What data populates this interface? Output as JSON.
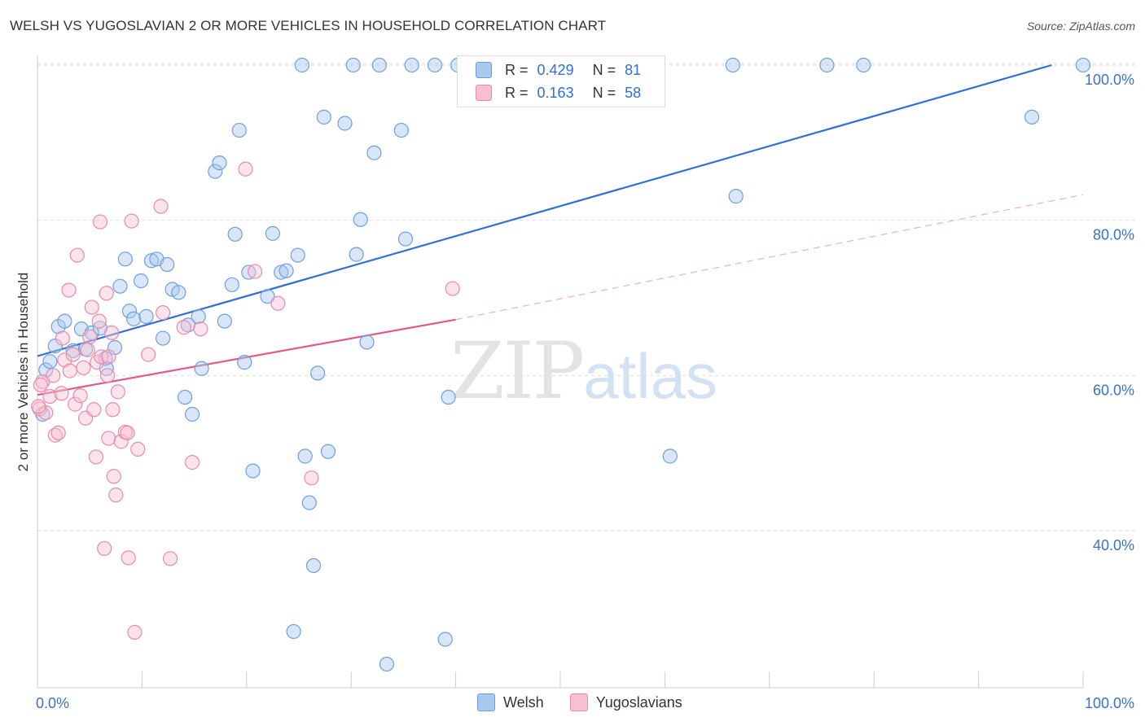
{
  "header": {
    "title": "WELSH VS YUGOSLAVIAN 2 OR MORE VEHICLES IN HOUSEHOLD CORRELATION CHART",
    "source": "Source: ZipAtlas.com"
  },
  "watermark": {
    "zip": "ZIP",
    "atlas": "atlas"
  },
  "stats": [
    {
      "r_label": "R =",
      "r_value": "0.429",
      "n_label": "N =",
      "n_value": "81",
      "color": "#a9c8f0",
      "border": "#6d9fe0"
    },
    {
      "r_label": "R =",
      "r_value": "0.163",
      "n_label": "N =",
      "n_value": "58",
      "color": "#f7c0d2",
      "border": "#e98aaa"
    }
  ],
  "legend": [
    {
      "label": "Welsh",
      "color": "#a9c8f0",
      "border": "#6d9fe0"
    },
    {
      "label": "Yugoslavians",
      "color": "#f7c0d2",
      "border": "#e98aaa"
    }
  ],
  "chart_data": {
    "type": "scatter",
    "title": "WELSH VS YUGOSLAVIAN 2 OR MORE VEHICLES IN HOUSEHOLD CORRELATION CHART",
    "xlabel": "",
    "ylabel": "2 or more Vehicles in Household",
    "xlim": [
      0,
      100
    ],
    "ylim": [
      20,
      102
    ],
    "x_tick_labels": [
      "0.0%",
      "100.0%"
    ],
    "y_ticks": [
      100,
      80,
      60,
      40
    ],
    "y_tick_labels": [
      "100.0%",
      "80.0%",
      "60.0%",
      "40.0%"
    ],
    "grid": true,
    "legend_position": "bottom-center",
    "series": [
      {
        "name": "Welsh",
        "color": "#a9c8f0",
        "stroke": "#6d9fe0",
        "line_color": "#2f6fd6",
        "trend": {
          "x": [
            0,
            97
          ],
          "y": [
            62.5,
            100
          ]
        },
        "points": [
          [
            0.5,
            55.0
          ],
          [
            0.8,
            60.7
          ],
          [
            1.2,
            61.8
          ],
          [
            1.7,
            63.8
          ],
          [
            2.0,
            66.3
          ],
          [
            2.6,
            67.0
          ],
          [
            3.4,
            63.2
          ],
          [
            4.2,
            66.0
          ],
          [
            4.6,
            63.4
          ],
          [
            5.2,
            65.5
          ],
          [
            6.0,
            66.1
          ],
          [
            6.5,
            62.2
          ],
          [
            6.6,
            60.9
          ],
          [
            7.4,
            63.6
          ],
          [
            7.9,
            71.5
          ],
          [
            8.4,
            75.0
          ],
          [
            8.8,
            68.3
          ],
          [
            9.2,
            67.3
          ],
          [
            9.9,
            72.2
          ],
          [
            10.4,
            67.6
          ],
          [
            10.9,
            74.8
          ],
          [
            11.4,
            75.0
          ],
          [
            12.0,
            64.8
          ],
          [
            12.4,
            74.3
          ],
          [
            12.9,
            71.1
          ],
          [
            13.5,
            70.7
          ],
          [
            14.1,
            57.2
          ],
          [
            14.4,
            66.5
          ],
          [
            14.8,
            55.0
          ],
          [
            15.4,
            67.6
          ],
          [
            15.7,
            60.9
          ],
          [
            17.0,
            86.3
          ],
          [
            17.4,
            87.4
          ],
          [
            17.9,
            67.0
          ],
          [
            18.6,
            71.7
          ],
          [
            18.9,
            78.2
          ],
          [
            19.3,
            91.6
          ],
          [
            19.8,
            61.7
          ],
          [
            20.2,
            73.3
          ],
          [
            20.6,
            47.7
          ],
          [
            22.0,
            70.2
          ],
          [
            22.5,
            78.3
          ],
          [
            23.3,
            73.3
          ],
          [
            23.8,
            73.5
          ],
          [
            24.5,
            27.0
          ],
          [
            24.9,
            75.5
          ],
          [
            25.3,
            100
          ],
          [
            25.6,
            49.6
          ],
          [
            26.0,
            43.6
          ],
          [
            26.4,
            35.5
          ],
          [
            26.8,
            60.3
          ],
          [
            27.4,
            93.3
          ],
          [
            27.8,
            50.2
          ],
          [
            29.4,
            92.5
          ],
          [
            30.2,
            100
          ],
          [
            30.5,
            75.6
          ],
          [
            30.9,
            80.1
          ],
          [
            31.5,
            64.3
          ],
          [
            32.2,
            88.7
          ],
          [
            32.7,
            100
          ],
          [
            33.4,
            22.8
          ],
          [
            34.8,
            91.6
          ],
          [
            35.2,
            77.6
          ],
          [
            35.8,
            100
          ],
          [
            38.0,
            100
          ],
          [
            39.0,
            26.0
          ],
          [
            39.3,
            57.2
          ],
          [
            40.2,
            100
          ],
          [
            41.5,
            100
          ],
          [
            42.0,
            100
          ],
          [
            44.2,
            100
          ],
          [
            46.0,
            100
          ],
          [
            47.2,
            100
          ],
          [
            50.0,
            100
          ],
          [
            60.5,
            49.6
          ],
          [
            66.5,
            100
          ],
          [
            66.8,
            83.1
          ],
          [
            75.5,
            100
          ],
          [
            79.0,
            100
          ],
          [
            95.1,
            93.3
          ],
          [
            100.0,
            100
          ]
        ]
      },
      {
        "name": "Yugoslavians",
        "color": "#f7c0d2",
        "stroke": "#e98aaa",
        "line_color": "#e05a8a",
        "trend": {
          "x": [
            0,
            40
          ],
          "y": [
            57.5,
            67.2
          ]
        },
        "trend_dashed": {
          "x": [
            40,
            100
          ],
          "y": [
            67.2,
            83.3
          ]
        },
        "points": [
          [
            0.2,
            55.7
          ],
          [
            0.5,
            59.2
          ],
          [
            0.8,
            55.2
          ],
          [
            1.2,
            57.3
          ],
          [
            1.5,
            60.0
          ],
          [
            1.7,
            52.3
          ],
          [
            2.0,
            52.6
          ],
          [
            2.3,
            57.7
          ],
          [
            2.4,
            64.8
          ],
          [
            2.6,
            62.0
          ],
          [
            3.0,
            71.0
          ],
          [
            3.1,
            60.6
          ],
          [
            3.4,
            62.7
          ],
          [
            3.6,
            56.3
          ],
          [
            3.8,
            75.5
          ],
          [
            4.1,
            57.4
          ],
          [
            4.4,
            61.0
          ],
          [
            4.6,
            54.5
          ],
          [
            4.8,
            63.3
          ],
          [
            5.0,
            65.0
          ],
          [
            5.2,
            68.8
          ],
          [
            5.4,
            55.6
          ],
          [
            5.6,
            49.5
          ],
          [
            5.7,
            61.7
          ],
          [
            5.9,
            67.0
          ],
          [
            6.0,
            79.8
          ],
          [
            6.1,
            62.4
          ],
          [
            6.4,
            37.7
          ],
          [
            6.6,
            70.6
          ],
          [
            6.7,
            60.0
          ],
          [
            6.8,
            62.4
          ],
          [
            6.8,
            51.9
          ],
          [
            7.1,
            65.5
          ],
          [
            7.2,
            55.6
          ],
          [
            7.3,
            47.0
          ],
          [
            7.5,
            44.6
          ],
          [
            7.7,
            57.9
          ],
          [
            8.0,
            51.5
          ],
          [
            8.4,
            52.7
          ],
          [
            8.6,
            52.6
          ],
          [
            8.7,
            36.5
          ],
          [
            9.0,
            79.9
          ],
          [
            9.3,
            26.9
          ],
          [
            9.6,
            50.5
          ],
          [
            10.6,
            62.7
          ],
          [
            11.8,
            81.8
          ],
          [
            12.0,
            68.1
          ],
          [
            12.7,
            36.4
          ],
          [
            14.0,
            66.2
          ],
          [
            14.8,
            48.8
          ],
          [
            15.6,
            66.0
          ],
          [
            19.9,
            86.6
          ],
          [
            20.8,
            73.4
          ],
          [
            23.0,
            69.3
          ],
          [
            26.2,
            46.8
          ],
          [
            39.7,
            71.2
          ],
          [
            0.1,
            56.0
          ],
          [
            0.3,
            58.8
          ]
        ]
      }
    ]
  }
}
